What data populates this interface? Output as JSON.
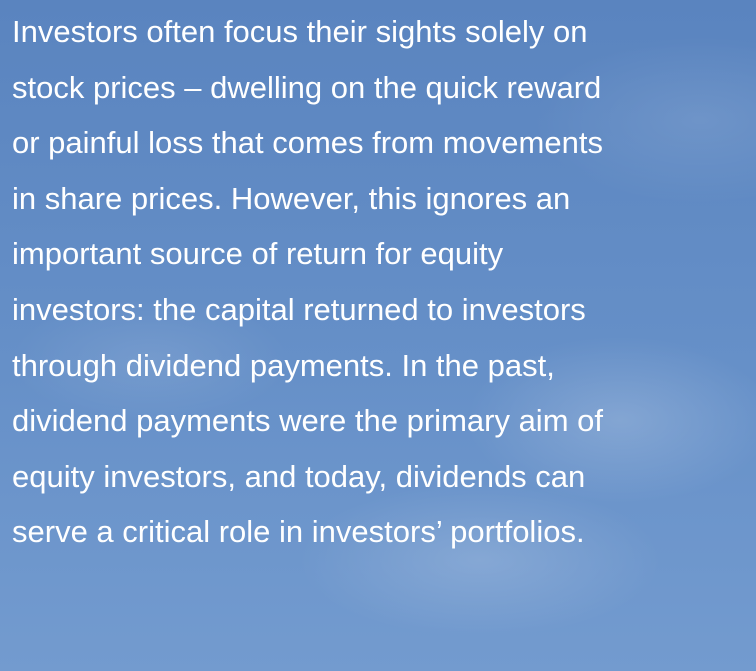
{
  "paragraph": {
    "lines": [
      "Investors often focus their sights solely on",
      "stock prices – dwelling on the quick reward",
      "or painful loss that comes from movements",
      "in share prices. However, this ignores an",
      "important source of return for equity",
      "investors: the capital returned to investors",
      "through dividend payments. In the past,",
      "dividend payments were the primary aim of",
      "equity investors, and today, dividends can",
      "serve a critical role in investors’ portfolios."
    ]
  }
}
